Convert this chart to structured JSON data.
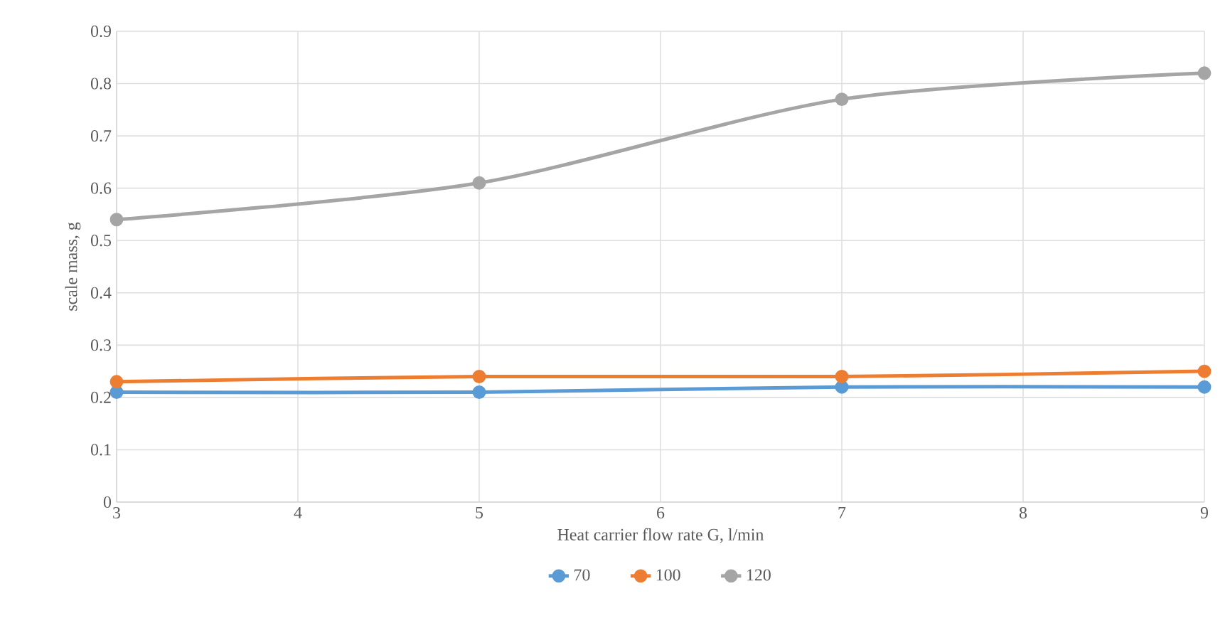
{
  "chart_data": {
    "type": "line",
    "xlabel": "Heat carrier flow rate G, l/min",
    "ylabel": "scale mass, g",
    "x": [
      3,
      5,
      7,
      9
    ],
    "series": [
      {
        "name": "70",
        "color": "#5b9bd5",
        "values": [
          0.21,
          0.21,
          0.22,
          0.22
        ]
      },
      {
        "name": "100",
        "color": "#ed7d31",
        "values": [
          0.23,
          0.24,
          0.24,
          0.25
        ]
      },
      {
        "name": "120",
        "color": "#a5a5a5",
        "values": [
          0.54,
          0.61,
          0.77,
          0.82
        ]
      }
    ],
    "xlim": [
      3,
      9
    ],
    "xticks": [
      3,
      4,
      5,
      6,
      7,
      8,
      9
    ],
    "ylim": [
      0,
      0.9
    ],
    "yticks": [
      0,
      0.1,
      0.2,
      0.3,
      0.4,
      0.5,
      0.6,
      0.7,
      0.8,
      0.9
    ],
    "grid": true,
    "legend": "bottom",
    "marker": "circle",
    "line_style": "solid"
  }
}
